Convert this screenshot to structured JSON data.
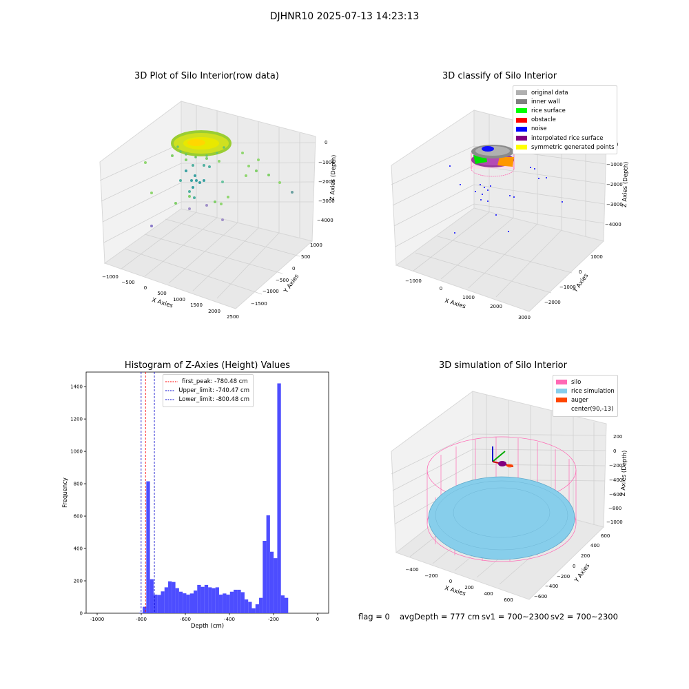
{
  "suptitle": "DJHNR10 2025-07-13 14:23:13",
  "colors": {
    "bar": "#4d4dff",
    "first_peak_line": "#ff0000",
    "limit_line": "#0000cc",
    "silo": "#ff69b4",
    "rice": "#87ceeb",
    "auger": "#ff4500",
    "classify": {
      "original data": "#b0b0b0",
      "inner wall": "#808080",
      "rice surface": "#00ff00",
      "obstacle": "#ff0000",
      "noise": "#0000ff",
      "interpolated rice surface": "#800080",
      "symmetric generated points": "#ffff00"
    }
  },
  "chart_data": [
    {
      "type": "scatter",
      "title": "3D Plot of Silo Interior(row data)",
      "xlabel": "X Axies",
      "ylabel": "Y Axies",
      "zlabel": "Z Axies (Depth)",
      "x_ticks": [
        "−1000",
        "−500",
        "0",
        "500",
        "1000",
        "1500",
        "2000",
        "2500"
      ],
      "y_ticks": [
        "1000",
        "500",
        "0",
        "−500",
        "−1000",
        "−1500"
      ],
      "z_ticks": [
        "0",
        "−1000",
        "−2000",
        "−3000",
        "−4000"
      ]
    },
    {
      "type": "scatter",
      "title": "3D classify of Silo Interior",
      "xlabel": "X Axies",
      "ylabel": "Y Axies",
      "zlabel": "Z Axies (Depth)",
      "x_ticks": [
        "−1000",
        "0",
        "1000",
        "2000",
        "3000"
      ],
      "y_ticks": [
        "1000",
        "0",
        "−1000",
        "−2000"
      ],
      "z_ticks": [
        "0",
        "−1000",
        "−2000",
        "−3000",
        "−4000"
      ],
      "legend": [
        "original data",
        "inner wall",
        "rice surface",
        "obstacle",
        "noise",
        "interpolated rice surface",
        "symmetric generated points"
      ],
      "legend_position": "top-right"
    },
    {
      "type": "bar",
      "title": "Histogram of Z-Axies (Height) Values",
      "xlabel": "Depth (cm)",
      "ylabel": "Frequency",
      "xlim": [
        -1050,
        50
      ],
      "ylim": [
        0,
        1490
      ],
      "x_ticks": [
        -1000,
        -800,
        -600,
        -400,
        -200,
        0
      ],
      "y_ticks": [
        0,
        200,
        400,
        600,
        800,
        1000,
        1200,
        1400
      ],
      "bin_width": 16.5,
      "bins_start": -810,
      "values": [
        3,
        40,
        815,
        210,
        115,
        113,
        135,
        160,
        197,
        193,
        155,
        133,
        123,
        115,
        122,
        140,
        175,
        163,
        175,
        160,
        155,
        160,
        115,
        122,
        115,
        133,
        145,
        145,
        130,
        85,
        70,
        30,
        55,
        95,
        447,
        605,
        380,
        340,
        1420,
        110,
        95
      ],
      "reference_lines": [
        {
          "label": "first_peak: -780.48 cm",
          "x": -780.48,
          "color": "#ff0000"
        },
        {
          "label": "Upper_limit: -740.47 cm",
          "x": -740.47,
          "color": "#0000cc"
        },
        {
          "label": "Lower_limit: -800.48 cm",
          "x": -800.48,
          "color": "#0000cc"
        }
      ],
      "legend_position": "upper center"
    },
    {
      "type": "scatter",
      "title": "3D simulation of Silo Interior",
      "xlabel": "X Axies",
      "ylabel": "Y Axies",
      "zlabel": "Z Axies (Depth)",
      "x_ticks": [
        "−400",
        "−200",
        "0",
        "200",
        "400",
        "600"
      ],
      "y_ticks": [
        "600",
        "400",
        "200",
        "0",
        "−200",
        "−400",
        "−600"
      ],
      "z_ticks": [
        "200",
        "0",
        "−200",
        "−400",
        "−600",
        "−800",
        "−1000"
      ],
      "legend": [
        "silo",
        "rice simulation",
        "auger",
        "center(90,-13)"
      ],
      "legend_position": "top-right"
    }
  ],
  "footer": {
    "flag": "flag = 0",
    "avgDepth": "avgDepth = 777 cm",
    "sv1": "sv1 = 700~2300",
    "sv2": "sv2 = 700~2300"
  }
}
